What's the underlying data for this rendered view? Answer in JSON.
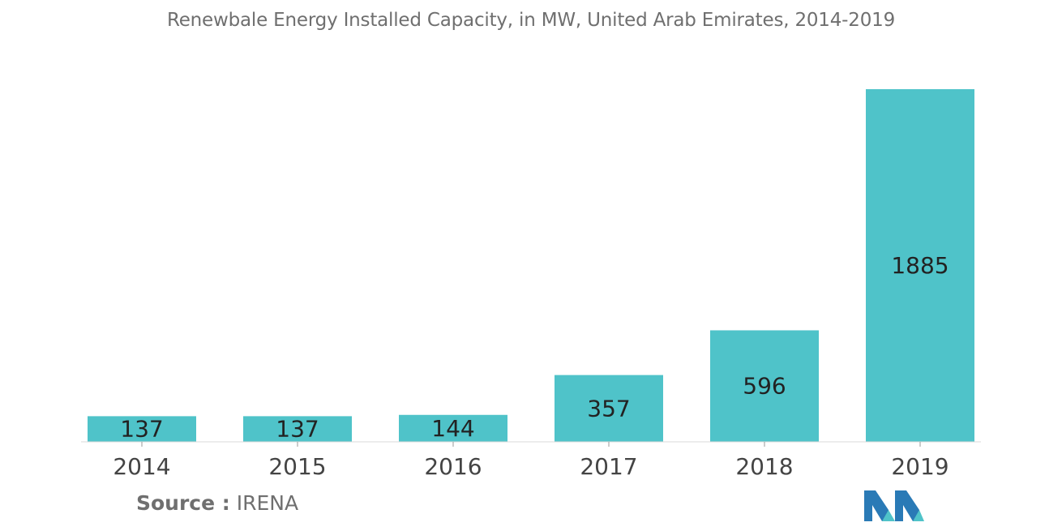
{
  "chart_data": {
    "type": "bar",
    "title": "Renewbale Energy Installed Capacity, in MW, United Arab Emirates, 2014-2019",
    "categories": [
      "2014",
      "2015",
      "2016",
      "2017",
      "2018",
      "2019"
    ],
    "values": [
      137,
      137,
      144,
      357,
      596,
      1885
    ],
    "xlabel": "",
    "ylabel": "",
    "ylim": [
      0,
      1885
    ],
    "bar_color": "#4fc3c9",
    "grid": false,
    "legend": "none"
  },
  "source": {
    "key": "Source :",
    "value": "IRENA"
  },
  "logo": {
    "icon": "mordor-intelligence-logo-icon",
    "colors": [
      "#2a7ab6",
      "#4fc3c9"
    ]
  }
}
